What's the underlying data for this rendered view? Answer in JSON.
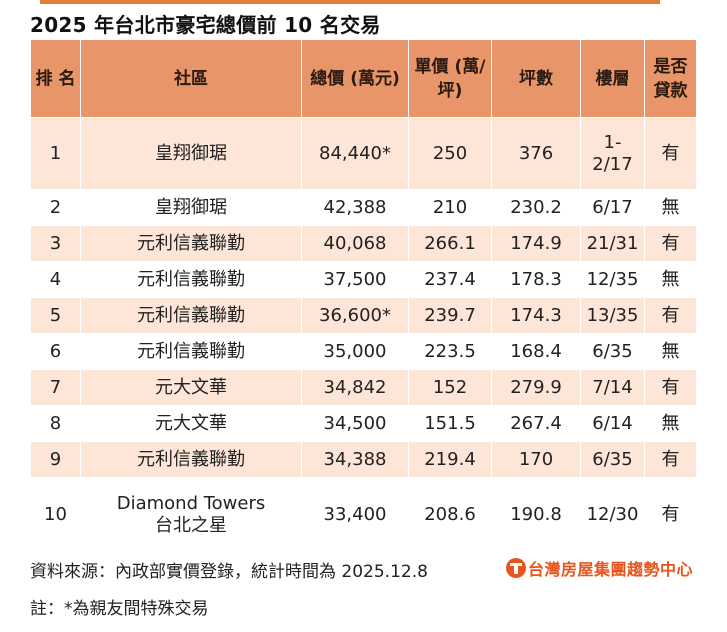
{
  "title": "2025 年台北市豪宅總價前 10 名交易",
  "table": {
    "headers": {
      "rank": [
        "排",
        "名"
      ],
      "community": [
        "社區"
      ],
      "total_price": [
        "總價",
        "(萬元)"
      ],
      "unit_price": [
        "單價",
        "(萬/坪)"
      ],
      "area": [
        "坪數"
      ],
      "floor": [
        "樓層"
      ],
      "loan": [
        "是否",
        "貸款"
      ]
    },
    "rows": [
      {
        "rank": "1",
        "community": [
          "皇翔御琚"
        ],
        "total": "84,440*",
        "unit": "250",
        "area": "376",
        "floor": [
          "1-",
          "2/17"
        ],
        "loan": "有"
      },
      {
        "rank": "2",
        "community": [
          "皇翔御琚"
        ],
        "total": "42,388",
        "unit": "210",
        "area": "230.2",
        "floor": [
          "6/17"
        ],
        "loan": "無"
      },
      {
        "rank": "3",
        "community": [
          "元利信義聯勤"
        ],
        "total": "40,068",
        "unit": "266.1",
        "area": "174.9",
        "floor": [
          "21/31"
        ],
        "loan": "有"
      },
      {
        "rank": "4",
        "community": [
          "元利信義聯勤"
        ],
        "total": "37,500",
        "unit": "237.4",
        "area": "178.3",
        "floor": [
          "12/35"
        ],
        "loan": "無"
      },
      {
        "rank": "5",
        "community": [
          "元利信義聯勤"
        ],
        "total": "36,600*",
        "unit": "239.7",
        "area": "174.3",
        "floor": [
          "13/35"
        ],
        "loan": "有"
      },
      {
        "rank": "6",
        "community": [
          "元利信義聯勤"
        ],
        "total": "35,000",
        "unit": "223.5",
        "area": "168.4",
        "floor": [
          "6/35"
        ],
        "loan": "無"
      },
      {
        "rank": "7",
        "community": [
          "元大文華"
        ],
        "total": "34,842",
        "unit": "152",
        "area": "279.9",
        "floor": [
          "7/14"
        ],
        "loan": "有"
      },
      {
        "rank": "8",
        "community": [
          "元大文華"
        ],
        "total": "34,500",
        "unit": "151.5",
        "area": "267.4",
        "floor": [
          "6/14"
        ],
        "loan": "無"
      },
      {
        "rank": "9",
        "community": [
          "元利信義聯勤"
        ],
        "total": "34,388",
        "unit": "219.4",
        "area": "170",
        "floor": [
          "6/35"
        ],
        "loan": "有"
      },
      {
        "rank": "10",
        "community": [
          "Diamond Towers",
          "台北之星"
        ],
        "total": "33,400",
        "unit": "208.6",
        "area": "190.8",
        "floor": [
          "12/30"
        ],
        "loan": "有"
      }
    ]
  },
  "footer": {
    "source": "資料來源：內政部實價登錄，統計時間為 2025.12.8",
    "note": "註：*為親友間特殊交易",
    "logo_text": "台灣房屋集團趨勢中心"
  },
  "colors": {
    "header_bg": "#e8956a",
    "odd_row_bg": "#fde6d8",
    "even_row_bg": "#ffffff",
    "logo": "#e8551c"
  }
}
